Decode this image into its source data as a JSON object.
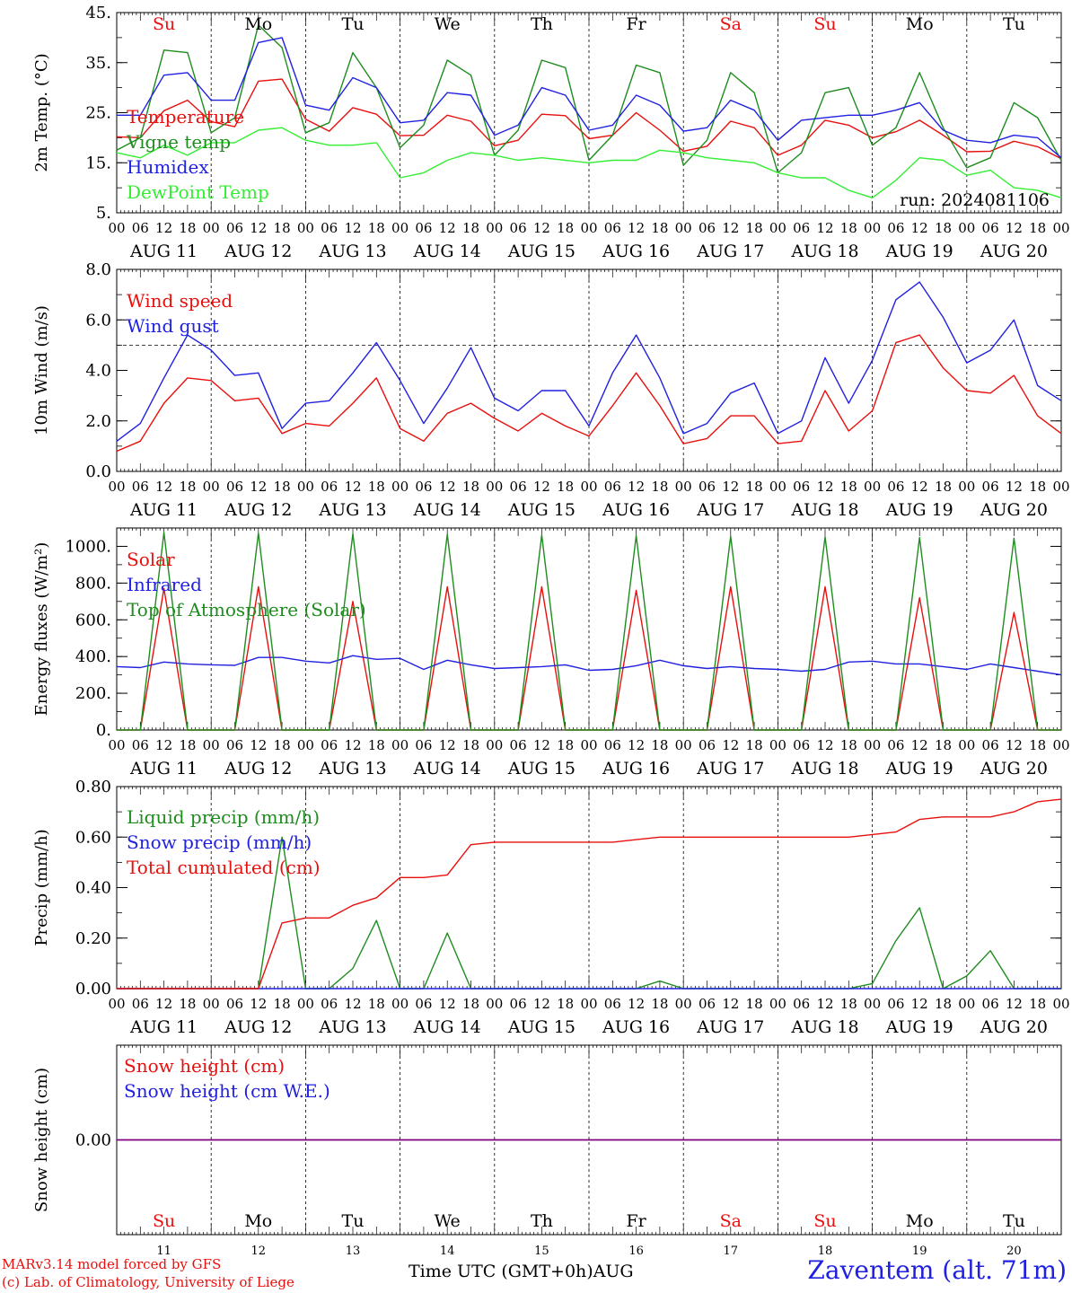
{
  "colors": {
    "red": "#e8100e",
    "darkgreen": "#1e8c1e",
    "blue": "#2020e0",
    "lightgreen": "#33ee33",
    "purple": "#800080"
  },
  "footer": {
    "credit_line1": "MARv3.14 model forced by GFS",
    "credit_line2": "(c) Lab. of Climatology, University of Liege",
    "x_title": "Time UTC (GMT+0h)AUG",
    "station": "Zaventem (alt. 71m)"
  },
  "chart_data": [
    {
      "type": "line",
      "ylabel": "2m Temp. (°C)",
      "ylim": [
        5,
        45
      ],
      "yticks": [
        "5.",
        "15.",
        "25.",
        "35.",
        "45."
      ],
      "weekdays": [
        "Su",
        "Mo",
        "Tu",
        "We",
        "Th",
        "Fr",
        "Sa",
        "Su",
        "Mo",
        "Tu"
      ],
      "date_labels": [
        "AUG 11",
        "AUG 12",
        "AUG 13",
        "AUG 14",
        "AUG 15",
        "AUG 16",
        "AUG 17",
        "AUG 18",
        "AUG 19",
        "AUG 20"
      ],
      "hour_labels": [
        "00",
        "06",
        "12",
        "18"
      ],
      "x_hours": [
        0,
        6,
        12,
        18,
        24,
        30,
        36,
        42,
        48,
        54,
        60,
        66,
        72,
        78,
        84,
        90,
        96,
        102,
        108,
        114,
        120,
        126,
        132,
        138,
        144,
        150,
        156,
        162,
        168,
        174,
        180,
        186,
        192,
        198,
        204,
        210,
        216,
        222,
        228,
        234,
        240
      ],
      "run_label": "run: 2024081106",
      "series": [
        {
          "name": "Temperature",
          "color": "red",
          "values": [
            20.2,
            20,
            25.4,
            27.5,
            23.2,
            22.2,
            31.3,
            31.7,
            23.7,
            21.3,
            26,
            24.7,
            20.4,
            20.5,
            24.5,
            23.3,
            18.4,
            19.5,
            24.7,
            24.4,
            19.8,
            20.5,
            25,
            21.5,
            17.3,
            18.3,
            23.3,
            22,
            16.5,
            18.5,
            23.5,
            22.5,
            20,
            21.2,
            23.5,
            20.5,
            17.2,
            17.3,
            19.3,
            18.2,
            15.8
          ]
        },
        {
          "name": "Vigne temp",
          "color": "darkgreen",
          "values": [
            17.5,
            20,
            37.5,
            37,
            21,
            24,
            42.5,
            38,
            21,
            23,
            37,
            30,
            18,
            22.5,
            35.5,
            32.5,
            16.5,
            21.5,
            35.5,
            34,
            15.5,
            20.5,
            34.5,
            33,
            14.5,
            19.5,
            33,
            29,
            13,
            17,
            29,
            30,
            18.5,
            22,
            33,
            22,
            14,
            16,
            27,
            24,
            15.5
          ]
        },
        {
          "name": "Humidex",
          "color": "blue",
          "values": [
            24.5,
            24.5,
            32.5,
            33,
            27.5,
            27.5,
            39,
            40,
            26.5,
            25.5,
            32,
            30,
            23,
            23.5,
            29,
            28.5,
            20.5,
            22.5,
            30,
            28.5,
            21.5,
            22.5,
            28.5,
            26.5,
            21.3,
            22,
            27.5,
            25.5,
            19.5,
            23.5,
            24,
            24.5,
            24.5,
            25.5,
            27,
            21.5,
            19.5,
            19,
            20.5,
            20,
            16
          ]
        },
        {
          "name": "DewPoint Temp",
          "color": "lightgreen",
          "values": [
            17,
            16,
            18.5,
            16.5,
            19,
            19,
            21.5,
            22,
            19.5,
            18.5,
            18.5,
            19,
            12,
            13,
            15.5,
            17,
            16.5,
            15.5,
            16,
            15.5,
            15,
            15.5,
            15.5,
            17.5,
            17,
            16,
            15.5,
            15,
            13,
            12,
            12,
            9.5,
            8,
            11.5,
            16,
            15.5,
            12.5,
            13.5,
            10,
            9.5,
            8
          ]
        }
      ]
    },
    {
      "type": "line",
      "ylabel": "10m Wind (m/s)",
      "ylim": [
        0,
        8
      ],
      "yticks": [
        "0.0",
        "2.0",
        "4.0",
        "6.0",
        "8.0"
      ],
      "date_labels": [
        "AUG 11",
        "AUG 12",
        "AUG 13",
        "AUG 14",
        "AUG 15",
        "AUG 16",
        "AUG 17",
        "AUG 18",
        "AUG 19",
        "AUG 20"
      ],
      "hour_labels": [
        "00",
        "06",
        "12",
        "18"
      ],
      "x_hours": [
        0,
        6,
        12,
        18,
        24,
        30,
        36,
        42,
        48,
        54,
        60,
        66,
        72,
        78,
        84,
        90,
        96,
        102,
        108,
        114,
        120,
        126,
        132,
        138,
        144,
        150,
        156,
        162,
        168,
        174,
        180,
        186,
        192,
        198,
        204,
        210,
        216,
        222,
        228,
        234,
        240
      ],
      "reference_line": 5.0,
      "series": [
        {
          "name": "Wind speed",
          "color": "red",
          "values": [
            0.8,
            1.2,
            2.7,
            3.7,
            3.6,
            2.8,
            2.9,
            1.5,
            1.9,
            1.8,
            2.7,
            3.7,
            1.7,
            1.2,
            2.3,
            2.7,
            2.1,
            1.6,
            2.3,
            1.8,
            1.4,
            2.6,
            3.9,
            2.6,
            1.1,
            1.3,
            2.2,
            2.2,
            1.1,
            1.2,
            3.2,
            1.6,
            2.4,
            5.1,
            5.4,
            4.1,
            3.2,
            3.1,
            3.8,
            2.2,
            1.5
          ]
        },
        {
          "name": "Wind gust",
          "color": "blue",
          "values": [
            1.2,
            1.9,
            3.7,
            5.4,
            4.8,
            3.8,
            3.9,
            1.7,
            2.7,
            2.8,
            3.9,
            5.1,
            3.6,
            1.9,
            3.3,
            4.9,
            2.9,
            2.4,
            3.2,
            3.2,
            1.8,
            3.9,
            5.4,
            3.7,
            1.5,
            1.9,
            3.1,
            3.5,
            1.5,
            2,
            4.5,
            2.7,
            4.4,
            6.8,
            7.5,
            6.1,
            4.3,
            4.8,
            6,
            3.4,
            2.8
          ]
        }
      ]
    },
    {
      "type": "line",
      "ylabel": "Energy fluxes (W/m²)",
      "ylim": [
        0,
        1100
      ],
      "yticks": [
        "0.",
        "200.",
        "400.",
        "600.",
        "800.",
        "1000."
      ],
      "date_labels": [
        "AUG 11",
        "AUG 12",
        "AUG 13",
        "AUG 14",
        "AUG 15",
        "AUG 16",
        "AUG 17",
        "AUG 18",
        "AUG 19",
        "AUG 20"
      ],
      "hour_labels": [
        "00",
        "06",
        "12",
        "18"
      ],
      "x_hours": [
        0,
        6,
        12,
        18,
        24,
        30,
        36,
        42,
        48,
        54,
        60,
        66,
        72,
        78,
        84,
        90,
        96,
        102,
        108,
        114,
        120,
        126,
        132,
        138,
        144,
        150,
        156,
        162,
        168,
        174,
        180,
        186,
        192,
        198,
        204,
        210,
        216,
        222,
        228,
        234,
        240
      ],
      "series": [
        {
          "name": "Solar",
          "color": "red",
          "values": [
            0,
            0,
            770,
            0,
            0,
            0,
            780,
            0,
            0,
            0,
            700,
            0,
            0,
            0,
            780,
            0,
            0,
            0,
            780,
            0,
            0,
            0,
            760,
            0,
            0,
            0,
            780,
            0,
            0,
            0,
            780,
            0,
            0,
            0,
            720,
            0,
            0,
            0,
            640,
            0,
            0
          ]
        },
        {
          "name": "Infrared",
          "color": "blue",
          "values": [
            345,
            340,
            370,
            360,
            355,
            352,
            395,
            395,
            375,
            365,
            405,
            385,
            390,
            330,
            380,
            355,
            335,
            340,
            345,
            355,
            325,
            330,
            350,
            380,
            350,
            335,
            345,
            335,
            330,
            320,
            330,
            370,
            375,
            360,
            360,
            345,
            330,
            360,
            340,
            320,
            300
          ]
        },
        {
          "name": "Top of Atmosphere (Solar)",
          "color": "darkgreen",
          "values": [
            0,
            0,
            1075,
            0,
            0,
            0,
            1072,
            0,
            0,
            0,
            1068,
            0,
            0,
            0,
            1065,
            0,
            0,
            0,
            1062,
            0,
            0,
            0,
            1058,
            0,
            0,
            0,
            1055,
            0,
            0,
            0,
            1052,
            0,
            0,
            0,
            1048,
            0,
            0,
            0,
            1045,
            0,
            0
          ]
        }
      ]
    },
    {
      "type": "line",
      "ylabel": "Precip (mm/h)",
      "ylim": [
        0,
        0.8
      ],
      "yticks": [
        "0.00",
        "0.20",
        "0.40",
        "0.60",
        "0.80"
      ],
      "date_labels": [
        "AUG 11",
        "AUG 12",
        "AUG 13",
        "AUG 14",
        "AUG 15",
        "AUG 16",
        "AUG 17",
        "AUG 18",
        "AUG 19",
        "AUG 20"
      ],
      "hour_labels": [
        "00",
        "06",
        "12",
        "18"
      ],
      "x_hours": [
        0,
        6,
        12,
        18,
        24,
        30,
        36,
        42,
        48,
        54,
        60,
        66,
        72,
        78,
        84,
        90,
        96,
        102,
        108,
        114,
        120,
        126,
        132,
        138,
        144,
        150,
        156,
        162,
        168,
        174,
        180,
        186,
        192,
        198,
        204,
        210,
        216,
        222,
        228,
        234,
        240
      ],
      "series": [
        {
          "name": "Liquid precip (mm/h)",
          "color": "darkgreen",
          "values": [
            0,
            0,
            0,
            0,
            0,
            0,
            0,
            0.6,
            0,
            0,
            0.08,
            0.27,
            0,
            0,
            0.22,
            0,
            0,
            0,
            0,
            0,
            0,
            0,
            0,
            0.03,
            0,
            0,
            0,
            0,
            0,
            0,
            0,
            0,
            0.02,
            0.19,
            0.32,
            0,
            0.05,
            0.15,
            0,
            0,
            0
          ]
        },
        {
          "name": "Snow precip (mm/h)",
          "color": "blue",
          "values": [
            0,
            0,
            0,
            0,
            0,
            0,
            0,
            0,
            0,
            0,
            0,
            0,
            0,
            0,
            0,
            0,
            0,
            0,
            0,
            0,
            0,
            0,
            0,
            0,
            0,
            0,
            0,
            0,
            0,
            0,
            0,
            0,
            0,
            0,
            0,
            0,
            0,
            0,
            0,
            0,
            0
          ]
        },
        {
          "name": "Total cumulated (cm)",
          "color": "red",
          "values": [
            0,
            0,
            0,
            0,
            0,
            0,
            0,
            0.26,
            0.28,
            0.28,
            0.33,
            0.36,
            0.44,
            0.44,
            0.45,
            0.57,
            0.58,
            0.58,
            0.58,
            0.58,
            0.58,
            0.58,
            0.59,
            0.6,
            0.6,
            0.6,
            0.6,
            0.6,
            0.6,
            0.6,
            0.6,
            0.6,
            0.61,
            0.62,
            0.67,
            0.68,
            0.68,
            0.68,
            0.7,
            0.74,
            0.75
          ]
        }
      ]
    },
    {
      "type": "line",
      "ylabel": "Snow height (cm)",
      "ylim": [
        -1,
        1
      ],
      "yticks": [
        "0.00"
      ],
      "weekdays": [
        "Su",
        "Mo",
        "Tu",
        "We",
        "Th",
        "Fr",
        "Sa",
        "Su",
        "Mo",
        "Tu"
      ],
      "day_numbers": [
        "11",
        "12",
        "13",
        "14",
        "15",
        "16",
        "17",
        "18",
        "19",
        "20"
      ],
      "x_hours": [
        0,
        240
      ],
      "series": [
        {
          "name": "Snow height (cm)",
          "color": "red",
          "values": [
            0,
            0
          ]
        },
        {
          "name": "Snow height (cm W.E.)",
          "color": "blue",
          "values": [
            0,
            0
          ]
        }
      ]
    }
  ]
}
